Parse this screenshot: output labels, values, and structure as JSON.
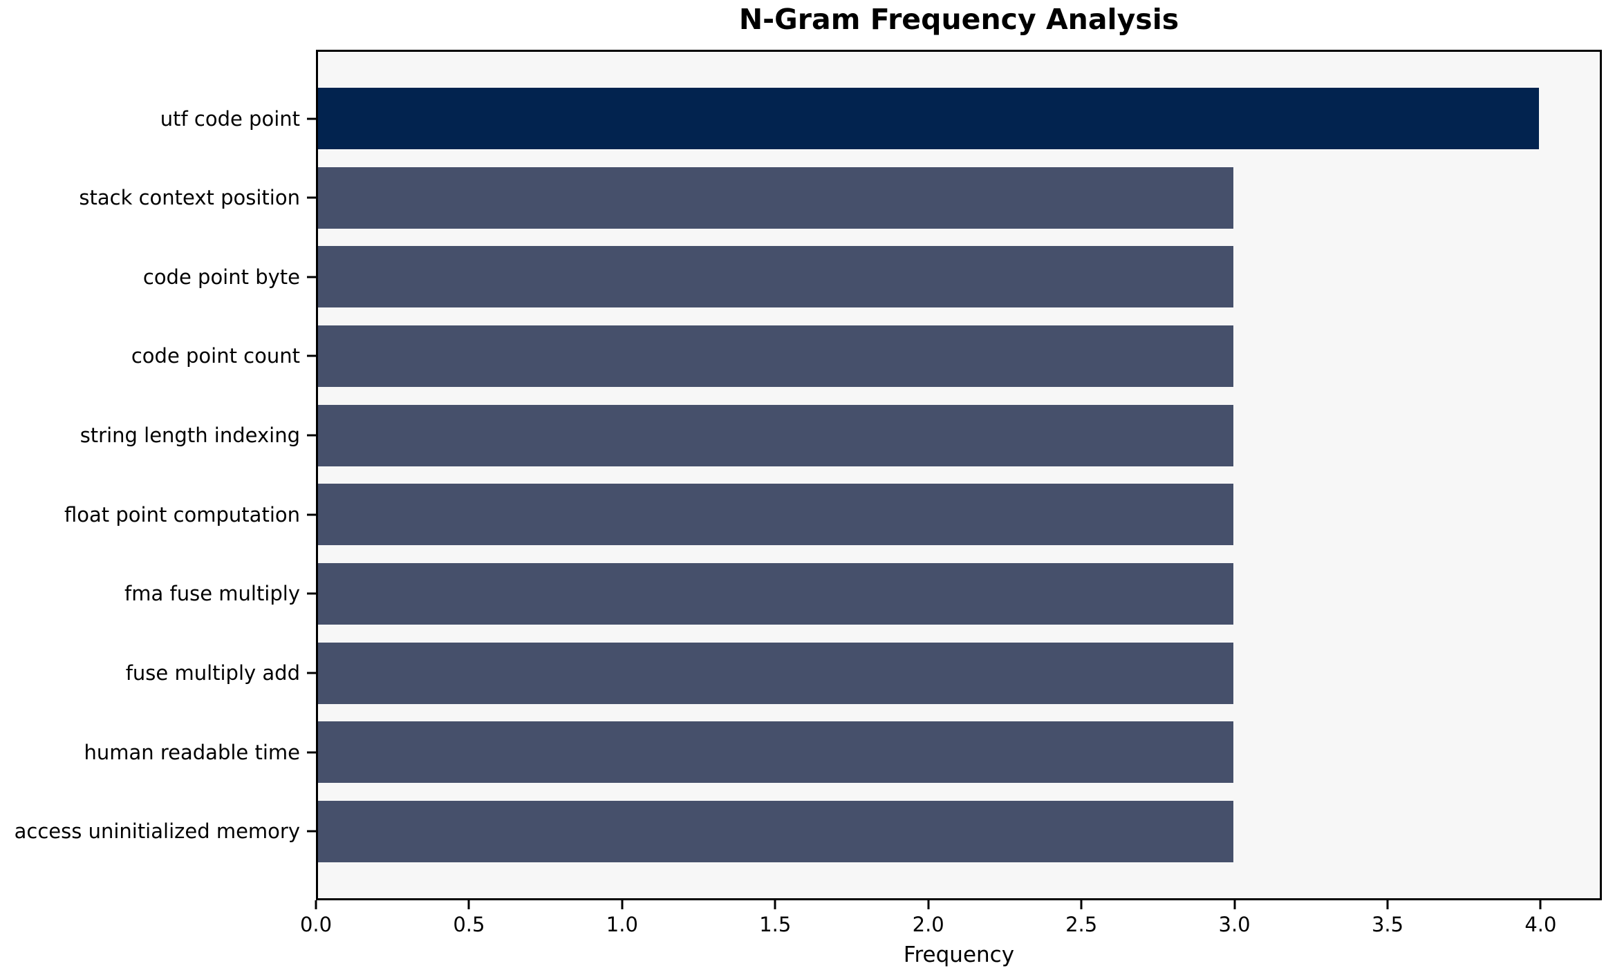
{
  "chart_data": {
    "type": "bar",
    "orientation": "horizontal",
    "title": "N-Gram Frequency Analysis",
    "xlabel": "Frequency",
    "ylabel": "",
    "categories": [
      "utf code point",
      "stack context position",
      "code point byte",
      "code point count",
      "string length indexing",
      "float point computation",
      "fma fuse multiply",
      "fuse multiply add",
      "human readable time",
      "access uninitialized memory"
    ],
    "values": [
      4,
      3,
      3,
      3,
      3,
      3,
      3,
      3,
      3,
      3
    ],
    "bar_colors": [
      "#02234f",
      "#46506b",
      "#46506b",
      "#46506b",
      "#46506b",
      "#46506b",
      "#46506b",
      "#46506b",
      "#46506b",
      "#46506b"
    ],
    "xlim": [
      0,
      4.2
    ],
    "xticks": [
      0.0,
      0.5,
      1.0,
      1.5,
      2.0,
      2.5,
      3.0,
      3.5,
      4.0
    ],
    "xtick_labels": [
      "0.0",
      "0.5",
      "1.0",
      "1.5",
      "2.0",
      "2.5",
      "3.0",
      "3.5",
      "4.0"
    ],
    "grid": false,
    "legend": null,
    "colors": {
      "highlight_bar": "#02234f",
      "default_bar": "#46506b",
      "plot_background": "#f7f7f7",
      "page_background": "#ffffff",
      "axis": "#000000",
      "text": "#000000"
    }
  }
}
